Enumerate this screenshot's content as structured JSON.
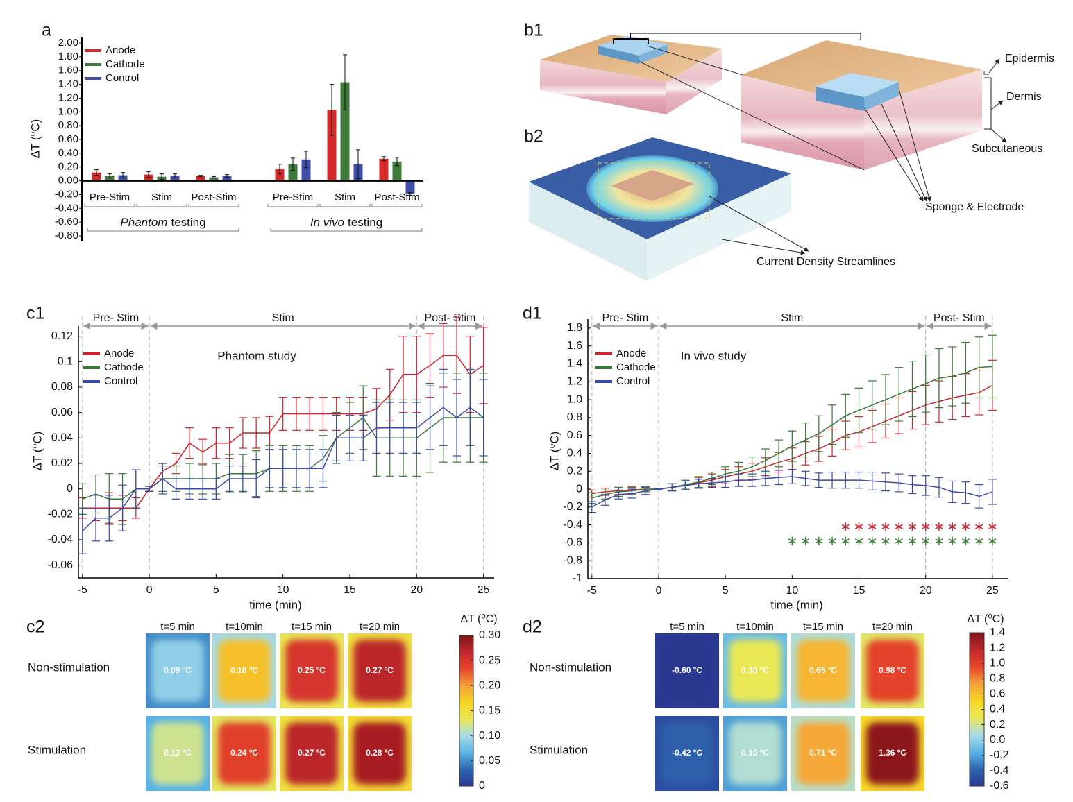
{
  "chart_data": [
    {
      "type": "bar",
      "panel": "a",
      "ylabel": "ΔT (⁰C)",
      "categories": [
        "Pre-Stim",
        "Stim",
        "Post-Stim",
        "Pre-Stim",
        "Stim",
        "Post-Stim"
      ],
      "groups": [
        {
          "label_italic": "Phantom",
          "label": "testing"
        },
        {
          "label_italic": "In vivo",
          "label": "testing"
        }
      ],
      "series": [
        {
          "name": "Anode",
          "color": "#d42a2a",
          "values": [
            0.12,
            0.09,
            0.07,
            0.17,
            1.03,
            0.32
          ],
          "errors": [
            0.04,
            0.04,
            0.01,
            0.07,
            0.37,
            0.03
          ]
        },
        {
          "name": "Cathode",
          "color": "#3e7a3a",
          "values": [
            0.07,
            0.06,
            0.05,
            0.24,
            1.43,
            0.28
          ],
          "errors": [
            0.03,
            0.04,
            0.01,
            0.09,
            0.4,
            0.06
          ]
        },
        {
          "name": "Control",
          "color": "#3f4fa8",
          "values": [
            0.08,
            0.07,
            0.07,
            0.31,
            0.24,
            -0.19
          ],
          "errors": [
            0.04,
            0.03,
            0.02,
            0.12,
            0.21,
            0.02
          ]
        }
      ],
      "ylim": [
        -0.8,
        2.0
      ],
      "yticks": [
        {
          "value": -0.8,
          "label": "-0.80"
        },
        {
          "value": -0.6,
          "label": "-0.60"
        },
        {
          "value": -0.4,
          "label": "-0.40"
        },
        {
          "value": -0.2,
          "label": "-0.20"
        },
        {
          "value": 0,
          "label": "0.00"
        },
        {
          "value": 0.2,
          "label": "0.20"
        },
        {
          "value": 0.4,
          "label": "0.40"
        },
        {
          "value": 0.6,
          "label": "0.60"
        },
        {
          "value": 0.8,
          "label": "0.80"
        },
        {
          "value": 1.0,
          "label": "1.00"
        },
        {
          "value": 1.2,
          "label": "1.20"
        },
        {
          "value": 1.4,
          "label": "1.40"
        },
        {
          "value": 1.6,
          "label": "1.60"
        },
        {
          "value": 1.8,
          "label": "1.80"
        },
        {
          "value": 2.0,
          "label": "2.00"
        }
      ],
      "legend": "upper left"
    },
    {
      "type": "line",
      "panel": "c1",
      "annotation": "Phantom study",
      "xlabel": "time (min)",
      "ylabel": "ΔT (⁰C)",
      "phases": [
        {
          "label": "Pre- Stim",
          "range": [
            -5,
            0
          ]
        },
        {
          "label": "Stim",
          "range": [
            0,
            20
          ]
        },
        {
          "label": "Post- Stim",
          "range": [
            20,
            25
          ]
        }
      ],
      "x": [
        -5,
        -4,
        -3,
        -2,
        -1,
        0,
        1,
        2,
        3,
        4,
        5,
        6,
        7,
        8,
        9,
        10,
        11,
        12,
        13,
        14,
        15,
        16,
        17,
        18,
        19,
        20,
        21,
        22,
        23,
        24,
        25
      ],
      "series": [
        {
          "name": "Anode",
          "color": "#d0202a",
          "values": [
            -0.015,
            -0.015,
            -0.015,
            -0.015,
            -0.015,
            0,
            0.014,
            0.02,
            0.036,
            0.029,
            0.036,
            0.036,
            0.044,
            0.044,
            0.044,
            0.059,
            0.059,
            0.059,
            0.059,
            0.059,
            0.059,
            0.059,
            0.063,
            0.074,
            0.09,
            0.09,
            0.097,
            0.105,
            0.105,
            0.09,
            0.097
          ],
          "errors": [
            0.008,
            0.01,
            0.012,
            0.01,
            0.008,
            0.002,
            0.006,
            0.008,
            0.012,
            0.01,
            0.012,
            0.012,
            0.012,
            0.012,
            0.013,
            0.013,
            0.013,
            0.013,
            0.013,
            0.013,
            0.013,
            0.013,
            0.016,
            0.02,
            0.03,
            0.03,
            0.025,
            0.025,
            0.03,
            0.03,
            0.03
          ]
        },
        {
          "name": "Cathode",
          "color": "#3a7a36",
          "values": [
            -0.008,
            -0.004,
            -0.008,
            -0.008,
            0,
            0,
            0.008,
            0.008,
            0.008,
            0.008,
            0.008,
            0.012,
            0.012,
            0.012,
            0.016,
            0.016,
            0.016,
            0.016,
            0.024,
            0.04,
            0.048,
            0.056,
            0.04,
            0.04,
            0.04,
            0.04,
            0.048,
            0.056,
            0.056,
            0.056,
            0.056
          ],
          "errors": [
            0.012,
            0.015,
            0.02,
            0.02,
            0.015,
            0.002,
            0.01,
            0.01,
            0.012,
            0.012,
            0.012,
            0.015,
            0.015,
            0.018,
            0.018,
            0.018,
            0.018,
            0.018,
            0.018,
            0.02,
            0.02,
            0.025,
            0.03,
            0.03,
            0.03,
            0.03,
            0.035,
            0.035,
            0.035,
            0.035,
            0.035
          ]
        },
        {
          "name": "Control",
          "color": "#3a4aa8",
          "values": [
            -0.033,
            -0.023,
            -0.023,
            -0.015,
            0,
            0,
            0.008,
            0,
            0,
            0,
            0,
            0.008,
            0.008,
            0.008,
            0.016,
            0.016,
            0.016,
            0.016,
            0.016,
            0.04,
            0.04,
            0.04,
            0.048,
            0.048,
            0.048,
            0.048,
            0.056,
            0.064,
            0.056,
            0.064,
            0.056
          ],
          "errors": [
            0.018,
            0.018,
            0.018,
            0.018,
            0.015,
            0.002,
            0.012,
            0.008,
            0.008,
            0.008,
            0.008,
            0.01,
            0.01,
            0.015,
            0.015,
            0.015,
            0.015,
            0.015,
            0.015,
            0.018,
            0.018,
            0.018,
            0.02,
            0.02,
            0.02,
            0.02,
            0.025,
            0.03,
            0.03,
            0.03,
            0.03
          ]
        }
      ],
      "xlim": [
        -5.3,
        25.8
      ],
      "xticks": [
        -5,
        0,
        5,
        10,
        15,
        20,
        25
      ],
      "ylim": [
        -0.07,
        0.128
      ],
      "yticks": [
        -0.06,
        -0.04,
        -0.02,
        0,
        0.02,
        0.04,
        0.06,
        0.08,
        0.1,
        0.12
      ],
      "legend": "upper left"
    },
    {
      "type": "line",
      "panel": "d1",
      "annotation": "In vivo study",
      "xlabel": "time (min)",
      "ylabel": "ΔT (⁰C)",
      "phases": [
        {
          "label": "Pre- Stim",
          "range": [
            -5,
            0
          ]
        },
        {
          "label": "Stim",
          "range": [
            0,
            20
          ]
        },
        {
          "label": "Post- Stim",
          "range": [
            20,
            25
          ]
        }
      ],
      "x": [
        -5,
        -4,
        -3,
        -2,
        -1,
        0,
        1,
        2,
        3,
        4,
        5,
        6,
        7,
        8,
        9,
        10,
        11,
        12,
        13,
        14,
        15,
        16,
        17,
        18,
        19,
        20,
        21,
        22,
        23,
        24,
        25
      ],
      "series": [
        {
          "name": "Anode",
          "color": "#c8282e",
          "values": [
            -0.05,
            -0.03,
            -0.02,
            -0.01,
            0,
            0,
            0.02,
            0.04,
            0.07,
            0.1,
            0.14,
            0.17,
            0.2,
            0.25,
            0.3,
            0.34,
            0.4,
            0.45,
            0.52,
            0.6,
            0.64,
            0.7,
            0.76,
            0.82,
            0.88,
            0.94,
            0.98,
            1.02,
            1.05,
            1.08,
            1.16
          ],
          "errors": [
            0.04,
            0.04,
            0.04,
            0.04,
            0.03,
            0.01,
            0.04,
            0.05,
            0.06,
            0.07,
            0.08,
            0.08,
            0.09,
            0.1,
            0.11,
            0.12,
            0.13,
            0.14,
            0.15,
            0.16,
            0.17,
            0.18,
            0.19,
            0.2,
            0.21,
            0.22,
            0.23,
            0.24,
            0.24,
            0.25,
            0.28
          ]
        },
        {
          "name": "Cathode",
          "color": "#3a7a36",
          "values": [
            -0.1,
            -0.06,
            -0.03,
            -0.02,
            0,
            0,
            0.02,
            0.05,
            0.08,
            0.12,
            0.17,
            0.2,
            0.25,
            0.32,
            0.4,
            0.48,
            0.55,
            0.62,
            0.72,
            0.82,
            0.88,
            0.94,
            1.0,
            1.06,
            1.12,
            1.18,
            1.24,
            1.26,
            1.3,
            1.36,
            1.37
          ],
          "errors": [
            0.06,
            0.05,
            0.05,
            0.04,
            0.03,
            0.01,
            0.04,
            0.05,
            0.06,
            0.07,
            0.08,
            0.1,
            0.11,
            0.13,
            0.15,
            0.17,
            0.19,
            0.2,
            0.22,
            0.24,
            0.25,
            0.27,
            0.28,
            0.3,
            0.31,
            0.32,
            0.33,
            0.33,
            0.34,
            0.34,
            0.35
          ]
        },
        {
          "name": "Control",
          "color": "#3a4aa8",
          "values": [
            -0.2,
            -0.12,
            -0.06,
            -0.05,
            -0.02,
            0,
            0.02,
            0.04,
            0.06,
            0.07,
            0.08,
            0.1,
            0.1,
            0.12,
            0.13,
            0.14,
            0.12,
            0.1,
            0.1,
            0.1,
            0.1,
            0.09,
            0.08,
            0.07,
            0.05,
            0.04,
            0.02,
            -0.03,
            -0.04,
            -0.08,
            -0.03
          ],
          "errors": [
            0.06,
            0.06,
            0.05,
            0.05,
            0.04,
            0.01,
            0.04,
            0.05,
            0.05,
            0.05,
            0.06,
            0.07,
            0.07,
            0.08,
            0.08,
            0.08,
            0.08,
            0.08,
            0.09,
            0.09,
            0.09,
            0.1,
            0.1,
            0.1,
            0.1,
            0.11,
            0.11,
            0.12,
            0.12,
            0.13,
            0.14
          ]
        }
      ],
      "significance": [
        {
          "color": "#c8282e",
          "y": -0.42,
          "x": [
            14,
            15,
            16,
            17,
            18,
            19,
            20,
            21,
            22,
            23,
            24,
            25
          ]
        },
        {
          "color": "#3a7a36",
          "y": -0.58,
          "x": [
            10,
            11,
            12,
            13,
            14,
            15,
            16,
            17,
            18,
            19,
            20,
            21,
            22,
            23,
            24,
            25
          ]
        }
      ],
      "xlim": [
        -5.3,
        26.2
      ],
      "xticks": [
        -5,
        0,
        5,
        10,
        15,
        20,
        25
      ],
      "ylim": [
        -1,
        1.9
      ],
      "yticks": [
        -1,
        -0.8,
        -0.6,
        -0.4,
        -0.2,
        0,
        0.2,
        0.4,
        0.6,
        {
          "value": 1.0,
          "label": "1.0"
        },
        0.8,
        1.2,
        1.4,
        1.6,
        1.8
      ],
      "legend": "upper left"
    },
    {
      "type": "heatmap",
      "panel": "c2",
      "colorbar_title": "ΔT (⁰C)",
      "columns": [
        "t=5 min",
        "t=10min",
        "t=15 min",
        "t=20 min"
      ],
      "rows": [
        "Non-stimulation",
        "Stimulation"
      ],
      "values": [
        [
          0.09,
          0.18,
          0.25,
          0.27
        ],
        [
          0.12,
          0.24,
          0.27,
          0.28
        ]
      ],
      "value_labels": [
        [
          "0.09 ºC",
          "0.18 ºC",
          "0.25 ºC",
          "0.27 ºC"
        ],
        [
          "0.12 ºC",
          "0.24 ºC",
          "0.27 ºC",
          "0.28 ºC"
        ]
      ],
      "clim": [
        0,
        0.3
      ],
      "cticks": [
        0,
        {
          "value": 0.05,
          "label": "0.05"
        },
        {
          "value": 0.1,
          "label": "0.10"
        },
        {
          "value": 0.15,
          "label": "0.15"
        },
        {
          "value": 0.2,
          "label": "0.20"
        },
        {
          "value": 0.25,
          "label": "0.25"
        },
        {
          "value": 0.3,
          "label": "0.30"
        }
      ],
      "colormap": [
        "#2b3990",
        "#2e67b1",
        "#5ab4e5",
        "#a7dbe8",
        "#e8e857",
        "#f9d423",
        "#f4a23a",
        "#e8452c",
        "#c1272d",
        "#7f1416"
      ]
    },
    {
      "type": "heatmap",
      "panel": "d2",
      "colorbar_title": "ΔT (⁰C)",
      "columns": [
        "t=5 min",
        "t=10min",
        "t=15 min",
        "t=20 min"
      ],
      "rows": [
        "Non-stimulation",
        "Stimulation"
      ],
      "values": [
        [
          -0.6,
          0.3,
          0.65,
          0.98
        ],
        [
          -0.42,
          0.1,
          0.71,
          1.36
        ]
      ],
      "value_labels": [
        [
          "-0.60 ºC",
          "0.30 ºC",
          "0.65 ºC",
          "0.98 ºC"
        ],
        [
          "-0.42 ºC",
          "0.10 ºC",
          "0.71 ºC",
          "1.36 ºC"
        ]
      ],
      "clim": [
        -0.6,
        1.4
      ],
      "cticks": [
        -0.6,
        -0.4,
        -0.2,
        {
          "value": 0,
          "label": "0.0"
        },
        0.2,
        0.4,
        0.6,
        0.8,
        {
          "value": 1.0,
          "label": "1.0"
        },
        1.2,
        1.4
      ],
      "colormap": [
        "#2b3990",
        "#2e67b1",
        "#5ab4e5",
        "#a7dbe8",
        "#e8e857",
        "#f9d423",
        "#f4a23a",
        "#e8452c",
        "#c1272d",
        "#7f1416"
      ]
    }
  ],
  "diagram": {
    "panels": [
      "b1",
      "b2"
    ],
    "labels": [
      "Epidermis",
      "Dermis",
      "Subcutaneous",
      "Sponge & Electrode",
      "Current Density Streamlines"
    ]
  }
}
